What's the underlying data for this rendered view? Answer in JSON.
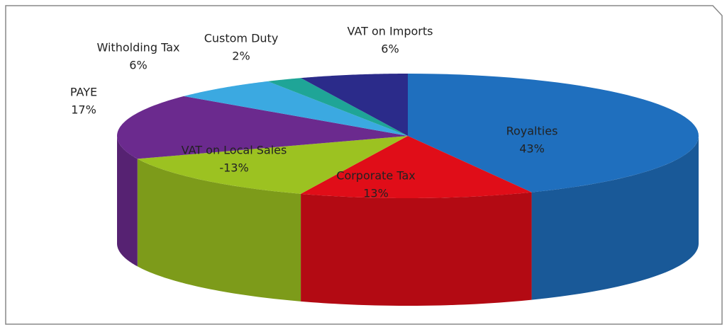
{
  "chart_data": {
    "type": "pie3d",
    "categories": [
      "Royalties",
      "Corporate Tax",
      "VAT on Local Sales",
      "PAYE",
      "Witholding Tax",
      "Custom Duty",
      "VAT on Imports"
    ],
    "values": [
      43,
      13,
      -13,
      17,
      6,
      2,
      6
    ],
    "value_labels": [
      "43%",
      "13%",
      "-13%",
      "17%",
      "6%",
      "2%",
      "6%"
    ],
    "colors": [
      "#1f6fbe",
      "#e00d18",
      "#9cc221",
      "#6b2a8e",
      "#3ba9e1",
      "#1fa597",
      "#2b2b8a"
    ]
  }
}
